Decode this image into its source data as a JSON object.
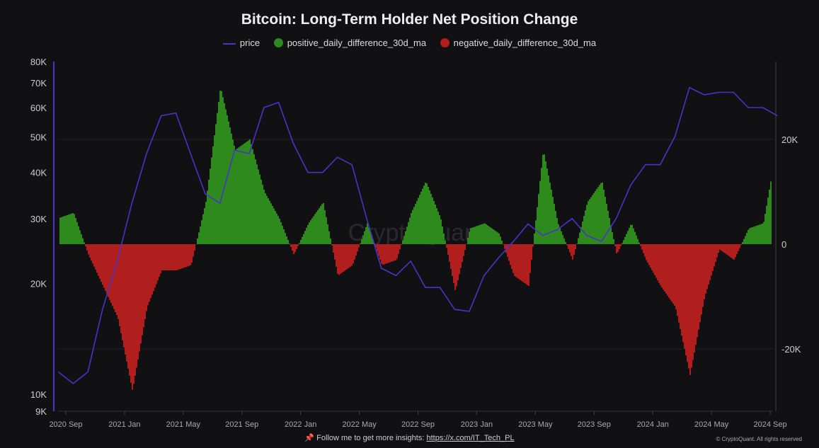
{
  "chart_data": {
    "type": "bar+line",
    "title": "Bitcoin: Long-Term Holder Net Position Change",
    "legend": [
      {
        "name": "price",
        "color": "#4b32c8",
        "marker": "line"
      },
      {
        "name": "positive_daily_difference_30d_ma",
        "color": "#2f8a1e",
        "marker": "dot"
      },
      {
        "name": "negative_daily_difference_30d_ma",
        "color": "#b01e1e",
        "marker": "dot"
      }
    ],
    "legend_placement": "top-center",
    "left_axis": {
      "scale": "log",
      "range": [
        9000,
        80000
      ],
      "ticks": [
        "80K",
        "70K",
        "60K",
        "50K",
        "40K",
        "30K",
        "20K",
        "10K",
        "9K"
      ],
      "tick_values": [
        80000,
        70000,
        60000,
        50000,
        40000,
        30000,
        20000,
        10000,
        9000
      ]
    },
    "right_axis": {
      "scale": "linear",
      "ticks": [
        "20K",
        "0",
        "-20K"
      ],
      "tick_values": [
        20000,
        0,
        -20000
      ]
    },
    "x_ticks": [
      "2020 Sep",
      "2021 Jan",
      "2021 May",
      "2021 Sep",
      "2022 Jan",
      "2022 May",
      "2022 Sep",
      "2023 Jan",
      "2023 May",
      "2023 Sep",
      "2024 Jan",
      "2024 May",
      "2024 Sep"
    ],
    "x_tick_dates": [
      "2020-09",
      "2021-01",
      "2021-05",
      "2021-09",
      "2022-01",
      "2022-05",
      "2022-09",
      "2023-01",
      "2023-05",
      "2023-09",
      "2024-01",
      "2024-05",
      "2024-09"
    ],
    "months": [
      "2020-08",
      "2020-09",
      "2020-10",
      "2020-11",
      "2020-12",
      "2021-01",
      "2021-02",
      "2021-03",
      "2021-04",
      "2021-05",
      "2021-06",
      "2021-07",
      "2021-08",
      "2021-09",
      "2021-10",
      "2021-11",
      "2021-12",
      "2022-01",
      "2022-02",
      "2022-03",
      "2022-04",
      "2022-05",
      "2022-06",
      "2022-07",
      "2022-08",
      "2022-09",
      "2022-10",
      "2022-11",
      "2022-12",
      "2023-01",
      "2023-02",
      "2023-03",
      "2023-04",
      "2023-05",
      "2023-06",
      "2023-07",
      "2023-08",
      "2023-09",
      "2023-10",
      "2023-11",
      "2023-12",
      "2024-01",
      "2024-02",
      "2024-03",
      "2024-04",
      "2024-05",
      "2024-06",
      "2024-07",
      "2024-08",
      "2024-09"
    ],
    "price": [
      11500,
      10700,
      11500,
      17000,
      23000,
      33000,
      45000,
      57000,
      58000,
      45000,
      35000,
      33000,
      46000,
      45000,
      60000,
      62000,
      48000,
      40000,
      40000,
      44000,
      42000,
      30000,
      22000,
      21000,
      23000,
      19500,
      19500,
      17000,
      16800,
      21000,
      23500,
      26000,
      29000,
      27000,
      28000,
      30000,
      27000,
      26000,
      30000,
      37000,
      42000,
      42000,
      50000,
      68000,
      65000,
      66000,
      66000,
      60000,
      60000,
      57000
    ],
    "net_position_change_30d_ma": [
      5000,
      6000,
      -2000,
      -8000,
      -14000,
      -28000,
      -12000,
      -5000,
      -5000,
      -4000,
      8000,
      30000,
      18000,
      20000,
      10000,
      5000,
      -2000,
      4000,
      8000,
      -6000,
      -4000,
      4000,
      -4000,
      -3000,
      6000,
      12000,
      5000,
      -9000,
      3000,
      4000,
      2000,
      -6000,
      -8000,
      18000,
      4000,
      -3000,
      8000,
      12000,
      -2000,
      4000,
      -3000,
      -8000,
      -12000,
      -25000,
      -10000,
      -1000,
      -3000,
      3000,
      4000,
      20000
    ],
    "grid": "horizontal, faint"
  },
  "watermark": "CryptoQuant",
  "footer": {
    "text": "Follow me to get more insights: ",
    "link": "https://x.com/IT_Tech_PL",
    "copyright": "© CryptoQuant. All rights reserved"
  }
}
